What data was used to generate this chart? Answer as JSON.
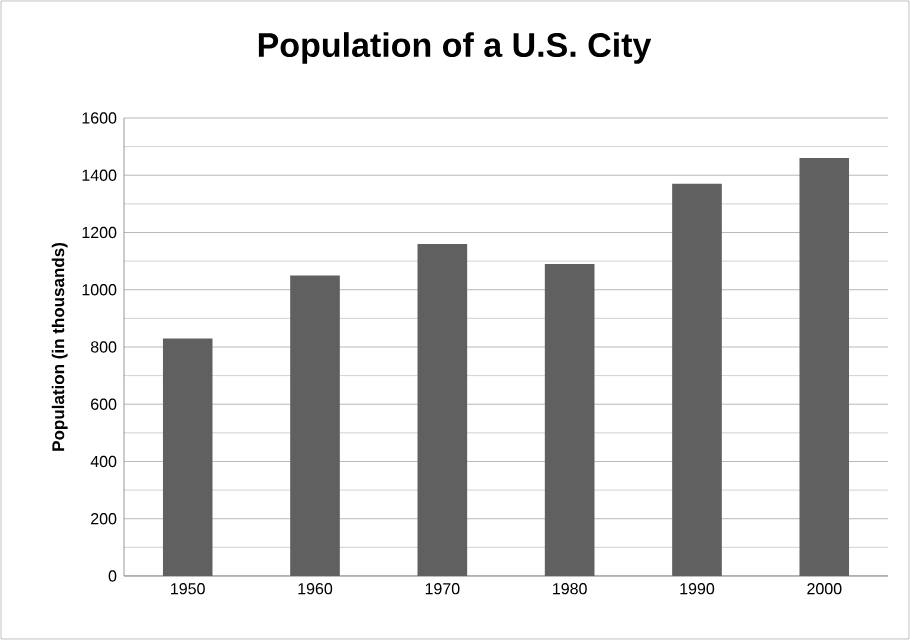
{
  "chart_data": {
    "type": "bar",
    "title": "Population of a U.S. City",
    "ylabel": "Population (in thousands)",
    "categories": [
      "1950",
      "1960",
      "1970",
      "1980",
      "1990",
      "2000"
    ],
    "values": [
      830,
      1050,
      1160,
      1090,
      1370,
      1460
    ],
    "color": "#606060",
    "ylim": [
      0,
      1600
    ],
    "yticks": [
      0,
      200,
      400,
      600,
      800,
      1000,
      1200,
      1400,
      1600
    ],
    "grid": "y"
  }
}
